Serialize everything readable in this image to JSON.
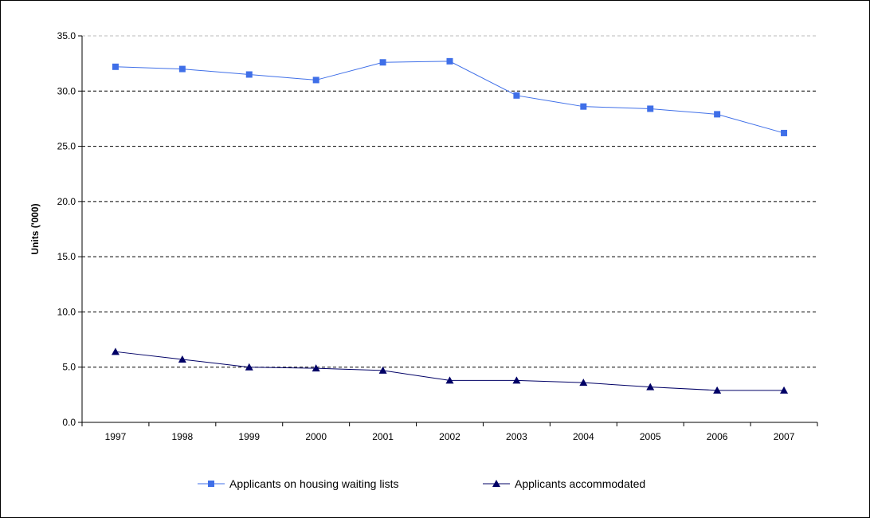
{
  "chart_data": {
    "type": "line",
    "title": "",
    "xlabel": "",
    "ylabel": "Units ('000)",
    "ylim": [
      0,
      35
    ],
    "yticks": [
      "0.0",
      "5.0",
      "10.0",
      "15.0",
      "20.0",
      "25.0",
      "30.0",
      "35.0"
    ],
    "categories": [
      "1997",
      "1998",
      "1999",
      "2000",
      "2001",
      "2002",
      "2003",
      "2004",
      "2005",
      "2006",
      "2007"
    ],
    "grid": "horizontal dashed",
    "legend_position": "bottom",
    "series": [
      {
        "name": "Applicants on housing waiting lists",
        "marker": "square",
        "color": "#3f6fe8",
        "values": [
          32.2,
          32.0,
          31.5,
          31.0,
          32.6,
          32.7,
          29.6,
          28.6,
          28.4,
          27.9,
          26.2
        ]
      },
      {
        "name": "Applicants accommodated",
        "marker": "triangle",
        "color": "#000066",
        "values": [
          6.4,
          5.7,
          5.0,
          4.9,
          4.7,
          3.8,
          3.8,
          3.6,
          3.2,
          2.9,
          2.9
        ]
      }
    ]
  }
}
